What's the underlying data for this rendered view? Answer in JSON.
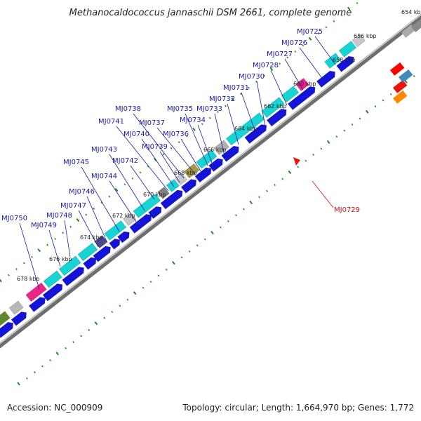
{
  "title": "Methanocaldococcus jannaschii DSM 2661, complete genome",
  "footer": {
    "accession": "Accession: NC_000909",
    "summary": "Topology: circular; Length: 1,664,970 bp; Genes: 1,772"
  },
  "colors": {
    "cds_forward": "#1414d9",
    "cds_reverse": "#17d4d4",
    "rna": "#ee2288",
    "tick": "#228822",
    "backbone": "#8a8a8a",
    "label_blue": "#1a1aa6",
    "label_red": "#cc1111"
  },
  "ticks": [
    "654 kbp",
    "656 kbp",
    "658 kbp",
    "660 kbp",
    "662 kbp",
    "664 kbp",
    "666 kbp",
    "668 kbp",
    "670 kbp",
    "672 kbp",
    "674 kbp",
    "676 kbp",
    "678 kbp"
  ],
  "genes": [
    "MJ0725",
    "MJ0726",
    "MJ0727",
    "MJ0728",
    "MJ0730",
    "MJ0731",
    "MJ0732",
    "MJ0733",
    "MJ0734",
    "MJ0735",
    "MJ0736",
    "MJ0737",
    "MJ0738",
    "MJ0739",
    "MJ0740",
    "MJ0741",
    "MJ0742",
    "MJ0743",
    "MJ0744",
    "MJ0745",
    "MJ0746",
    "MJ0747",
    "MJ0748",
    "MJ0749",
    "MJ0750",
    "MJ0729"
  ]
}
